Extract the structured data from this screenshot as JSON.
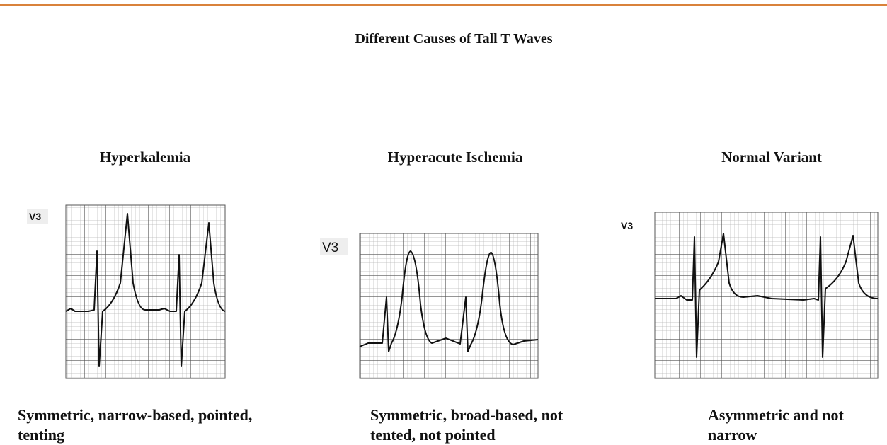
{
  "title": "Different Causes of Tall T Waves",
  "panels": [
    {
      "heading": "Hyperkalemia",
      "lead": "V3",
      "caption": [
        "Symmetric, narrow-based, pointed,",
        "tenting"
      ]
    },
    {
      "heading": "Hyperacute Ischemia",
      "lead": "V3",
      "caption": [
        "Symmetric, broad-based, not",
        "tented, not pointed"
      ]
    },
    {
      "heading": "Normal Variant",
      "lead": "V3",
      "caption": [
        "Asymmetric and not",
        "narrow"
      ]
    }
  ]
}
